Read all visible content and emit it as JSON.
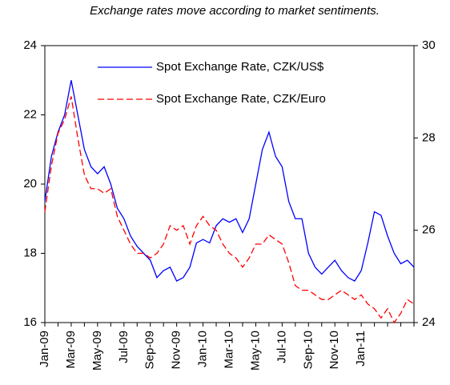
{
  "chart_data": {
    "type": "line",
    "title": "Exchange rates move according to market sentiments.",
    "categories": [
      "Jan-09",
      null,
      null,
      null,
      "Mar-09",
      null,
      null,
      null,
      "May-09",
      null,
      null,
      null,
      "Jul-09",
      null,
      null,
      null,
      "Sep-09",
      null,
      null,
      null,
      "Nov-09",
      null,
      null,
      null,
      "Jan-10",
      null,
      null,
      null,
      "Mar-10",
      null,
      null,
      null,
      "May-10",
      null,
      null,
      null,
      "Jul-10",
      null,
      null,
      null,
      "Sep-10",
      null,
      null,
      null,
      "Nov-10",
      null,
      null,
      null,
      "Jan-11",
      null,
      null,
      null,
      null,
      null,
      null,
      null,
      null
    ],
    "series": [
      {
        "name": "Spot Exchange Rate, CZK/US$",
        "color": "#0000ff",
        "dashed": false,
        "values": [
          19.5,
          20.8,
          21.5,
          22.0,
          23.0,
          22.0,
          21.0,
          20.5,
          20.3,
          20.5,
          20.0,
          19.3,
          19.0,
          18.5,
          18.2,
          18.0,
          17.8,
          17.3,
          17.5,
          17.6,
          17.2,
          17.3,
          17.6,
          18.3,
          18.4,
          18.3,
          18.8,
          19.0,
          18.9,
          19.0,
          18.6,
          19.0,
          20.0,
          21.0,
          21.5,
          20.8,
          20.5,
          19.5,
          19.0,
          19.0,
          18.0,
          17.6,
          17.4,
          17.6,
          17.8,
          17.5,
          17.3,
          17.2,
          17.5,
          18.3,
          19.2,
          19.1,
          18.5,
          18.0,
          17.7,
          17.8,
          17.6
        ]
      },
      {
        "name": "Spot Exchange Rate, CZK/Euro",
        "color": "#ff0000",
        "dashed": true,
        "axis": "y2",
        "values": [
          26.4,
          27.4,
          28.1,
          28.4,
          28.9,
          28.0,
          27.2,
          26.9,
          26.9,
          26.8,
          26.9,
          26.3,
          26.0,
          25.7,
          25.5,
          25.5,
          25.4,
          25.5,
          25.7,
          26.1,
          26.0,
          26.1,
          25.7,
          26.1,
          26.3,
          26.1,
          26.0,
          25.7,
          25.5,
          25.4,
          25.2,
          25.4,
          25.7,
          25.7,
          25.9,
          25.8,
          25.7,
          25.3,
          24.8,
          24.7,
          24.7,
          24.6,
          24.5,
          24.5,
          24.6,
          24.7,
          24.6,
          24.5,
          24.6,
          24.4,
          24.3,
          24.1,
          24.3,
          24.0,
          24.2,
          24.5,
          24.4
        ]
      }
    ],
    "ylim": [
      16,
      24
    ],
    "yticks": [
      16,
      18,
      20,
      22,
      24
    ],
    "y2lim": [
      24,
      30
    ],
    "y2ticks": [
      24,
      26,
      28,
      30
    ],
    "grid": false,
    "legend": "top"
  }
}
